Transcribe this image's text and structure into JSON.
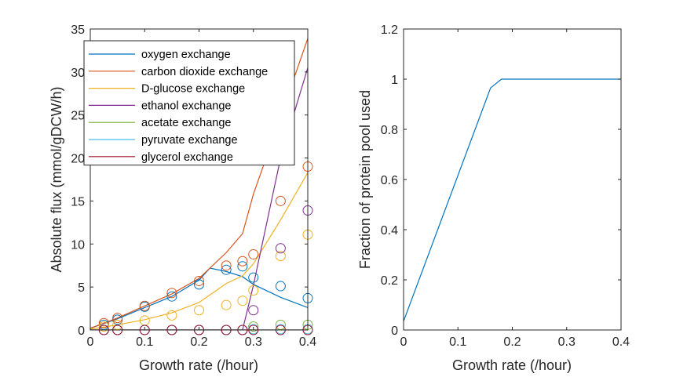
{
  "chart_data": [
    {
      "type": "line",
      "xlabel": "Growth rate (/hour)",
      "ylabel": "Absolute flux (mmol/gDCW/h)",
      "xlim": [
        0,
        0.4
      ],
      "ylim": [
        0,
        35
      ],
      "xticks": [
        0,
        0.1,
        0.2,
        0.3,
        0.4
      ],
      "xtick_labels": [
        "0",
        "0.1",
        "0.2",
        "0.3",
        "0.4"
      ],
      "yticks": [
        0,
        5,
        10,
        15,
        20,
        25,
        30,
        35
      ],
      "ytick_labels": [
        "0",
        "5",
        "10",
        "15",
        "20",
        "25",
        "30",
        "35"
      ],
      "grid": false,
      "legend_position": "top-left",
      "series": [
        {
          "name": "oxygen exchange",
          "color": "#0072BD",
          "line": {
            "x": [
              0,
              0.05,
              0.1,
              0.15,
              0.2,
              0.22,
              0.25,
              0.28,
              0.3,
              0.35,
              0.4
            ],
            "y": [
              0.2,
              1.3,
              2.6,
              3.9,
              5.8,
              7.2,
              6.8,
              6.2,
              5.3,
              3.8,
              2.6
            ]
          },
          "markers": {
            "x": [
              0.025,
              0.05,
              0.1,
              0.15,
              0.2,
              0.25,
              0.28,
              0.3,
              0.35,
              0.4
            ],
            "y": [
              0.6,
              1.2,
              2.7,
              3.9,
              5.3,
              7.0,
              7.4,
              6.1,
              5.1,
              3.7
            ]
          }
        },
        {
          "name": "carbon dioxide exchange",
          "color": "#D95319",
          "line": {
            "x": [
              0,
              0.05,
              0.1,
              0.15,
              0.2,
              0.25,
              0.28,
              0.3,
              0.35,
              0.4
            ],
            "y": [
              0.2,
              1.4,
              2.8,
              4.2,
              6.0,
              9.0,
              11.2,
              15.8,
              24.8,
              33.9
            ]
          },
          "markers": {
            "x": [
              0.025,
              0.05,
              0.1,
              0.15,
              0.2,
              0.25,
              0.28,
              0.3,
              0.35,
              0.4
            ],
            "y": [
              0.8,
              1.4,
              2.8,
              4.3,
              5.7,
              7.5,
              8.0,
              8.8,
              15.0,
              19.0
            ]
          }
        },
        {
          "name": "D-glucose exchange",
          "color": "#EDB120",
          "line": {
            "x": [
              0,
              0.05,
              0.1,
              0.15,
              0.2,
              0.25,
              0.28,
              0.3,
              0.35,
              0.4
            ],
            "y": [
              0.1,
              0.6,
              1.2,
              2.0,
              3.2,
              5.4,
              6.3,
              7.7,
              12.8,
              18.3
            ]
          },
          "markers": {
            "x": [
              0.025,
              0.05,
              0.1,
              0.15,
              0.2,
              0.25,
              0.28,
              0.3,
              0.35,
              0.4
            ],
            "y": [
              0.4,
              0.6,
              1.1,
              1.7,
              2.3,
              2.9,
              3.4,
              4.6,
              8.6,
              11.1
            ]
          }
        },
        {
          "name": "ethanol exchange",
          "color": "#7E2F8E",
          "line": {
            "x": [
              0,
              0.05,
              0.1,
              0.15,
              0.2,
              0.25,
              0.28,
              0.3,
              0.35,
              0.4
            ],
            "y": [
              0,
              0,
              0,
              0,
              0,
              0,
              0,
              5.2,
              20.0,
              30.5
            ]
          },
          "markers": {
            "x": [
              0.025,
              0.05,
              0.1,
              0.15,
              0.2,
              0.25,
              0.28,
              0.3,
              0.35,
              0.4
            ],
            "y": [
              0,
              0,
              0,
              0,
              0,
              0,
              0,
              2.3,
              9.5,
              13.9
            ]
          }
        },
        {
          "name": "acetate exchange",
          "color": "#77AC30",
          "line": {
            "x": [
              0,
              0.4
            ],
            "y": [
              0,
              0
            ]
          },
          "markers": {
            "x": [
              0.025,
              0.05,
              0.1,
              0.15,
              0.2,
              0.25,
              0.28,
              0.3,
              0.35,
              0.4
            ],
            "y": [
              0,
              0,
              0,
              0,
              0,
              0,
              0,
              0.4,
              0.6,
              0.6
            ]
          }
        },
        {
          "name": "pyruvate exchange",
          "color": "#4DBEEE",
          "line": {
            "x": [
              0,
              0.4
            ],
            "y": [
              0,
              0
            ]
          },
          "markers": {
            "x": [
              0.025,
              0.05,
              0.1,
              0.15,
              0.2,
              0.25,
              0.28,
              0.3,
              0.35,
              0.4
            ],
            "y": [
              0,
              0,
              0,
              0,
              0,
              0,
              0,
              0.1,
              0.1,
              0.1
            ]
          }
        },
        {
          "name": "glycerol exchange",
          "color": "#A2142F",
          "line": {
            "x": [
              0,
              0.4
            ],
            "y": [
              0,
              0
            ]
          },
          "markers": {
            "x": [
              0.025,
              0.05,
              0.1,
              0.15,
              0.2,
              0.25,
              0.28,
              0.3,
              0.35,
              0.4
            ],
            "y": [
              0,
              0,
              0,
              0,
              0,
              0,
              0,
              0,
              0,
              0
            ]
          }
        }
      ]
    },
    {
      "type": "line",
      "xlabel": "Growth rate (/hour)",
      "ylabel": "Fraction of protein pool used",
      "xlim": [
        0,
        0.4
      ],
      "ylim": [
        0,
        1.2
      ],
      "xticks": [
        0,
        0.1,
        0.2,
        0.3,
        0.4
      ],
      "xtick_labels": [
        "0",
        "0.1",
        "0.2",
        "0.3",
        "0.4"
      ],
      "yticks": [
        0,
        0.2,
        0.4,
        0.6,
        0.8,
        1,
        1.2
      ],
      "ytick_labels": [
        "0",
        "0.2",
        "0.4",
        "0.6",
        "0.8",
        "1",
        "1.2"
      ],
      "grid": false,
      "series": [
        {
          "color": "#0072BD",
          "line": {
            "x": [
              0,
              0.16,
              0.18,
              0.4
            ],
            "y": [
              0.035,
              0.965,
              1.0,
              1.0
            ]
          }
        }
      ]
    }
  ]
}
